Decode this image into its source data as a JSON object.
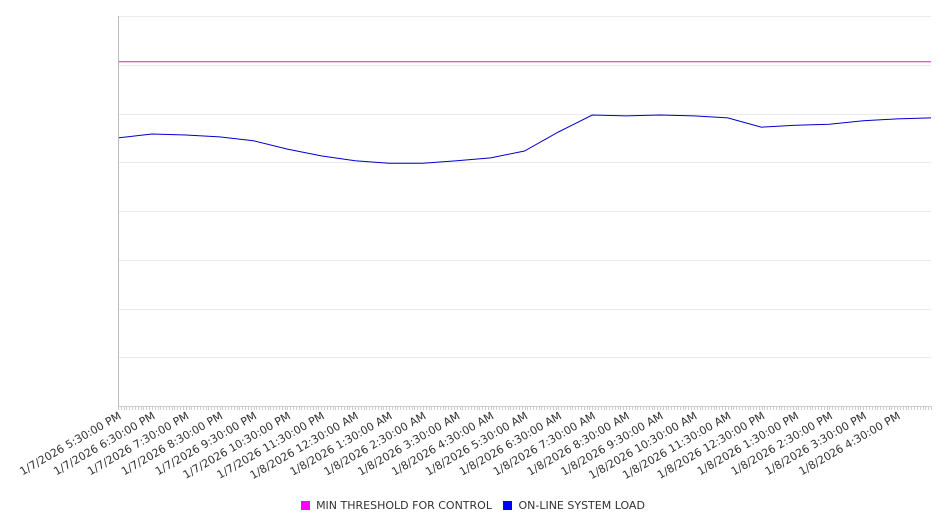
{
  "chart_data": {
    "type": "line",
    "title": "",
    "xlabel": "",
    "ylabel": "",
    "ylim": [
      0,
      8
    ],
    "y_unit_note": "no y-axis tick labels shown; values in gridline units",
    "grid": true,
    "legend_position": "bottom",
    "x_tick_labels": [
      "1/7/2026 5:30:00 PM",
      "1/7/2026 6:30:00 PM",
      "1/7/2026 7:30:00 PM",
      "1/7/2026 8:30:00 PM",
      "1/7/2026 9:30:00 PM",
      "1/7/2026 10:30:00 PM",
      "1/7/2026 11:30:00 PM",
      "1/8/2026 12:30:00 AM",
      "1/8/2026 1:30:00 AM",
      "1/8/2026 2:30:00 AM",
      "1/8/2026 3:30:00 AM",
      "1/8/2026 4:30:00 AM",
      "1/8/2026 5:30:00 AM",
      "1/8/2026 6:30:00 AM",
      "1/8/2026 7:30:00 AM",
      "1/8/2026 8:30:00 AM",
      "1/8/2026 9:30:00 AM",
      "1/8/2026 10:30:00 AM",
      "1/8/2026 11:30:00 AM",
      "1/8/2026 12:30:00 PM",
      "1/8/2026 1:30:00 PM",
      "1/8/2026 2:30:00 PM",
      "1/8/2026 3:30:00 PM",
      "1/8/2026 4:30:00 PM"
    ],
    "x_hours": [
      0,
      1,
      2,
      3,
      4,
      5,
      6,
      7,
      8,
      9,
      10,
      11,
      12,
      13,
      14,
      15,
      16,
      17,
      18,
      19,
      20,
      21,
      22,
      23,
      24
    ],
    "series": [
      {
        "name": "MIN THRESHOLD FOR CONTROL",
        "color": "#ff00ff",
        "line_color": "#cc22cc",
        "values": [
          7.06,
          7.06,
          7.06,
          7.06,
          7.06,
          7.06,
          7.06,
          7.06,
          7.06,
          7.06,
          7.06,
          7.06,
          7.06,
          7.06,
          7.06,
          7.06,
          7.06,
          7.06,
          7.06,
          7.06,
          7.06,
          7.06,
          7.06,
          7.06,
          7.06
        ]
      },
      {
        "name": "ON-LINE SYSTEM LOAD",
        "color": "#0000ff",
        "line_color": "#0000cc",
        "values": [
          5.5,
          5.58,
          5.56,
          5.52,
          5.44,
          5.27,
          5.13,
          5.03,
          4.98,
          4.98,
          5.03,
          5.09,
          5.23,
          5.62,
          5.97,
          5.95,
          5.97,
          5.95,
          5.91,
          5.72,
          5.76,
          5.78,
          5.85,
          5.89,
          5.91
        ]
      }
    ]
  }
}
